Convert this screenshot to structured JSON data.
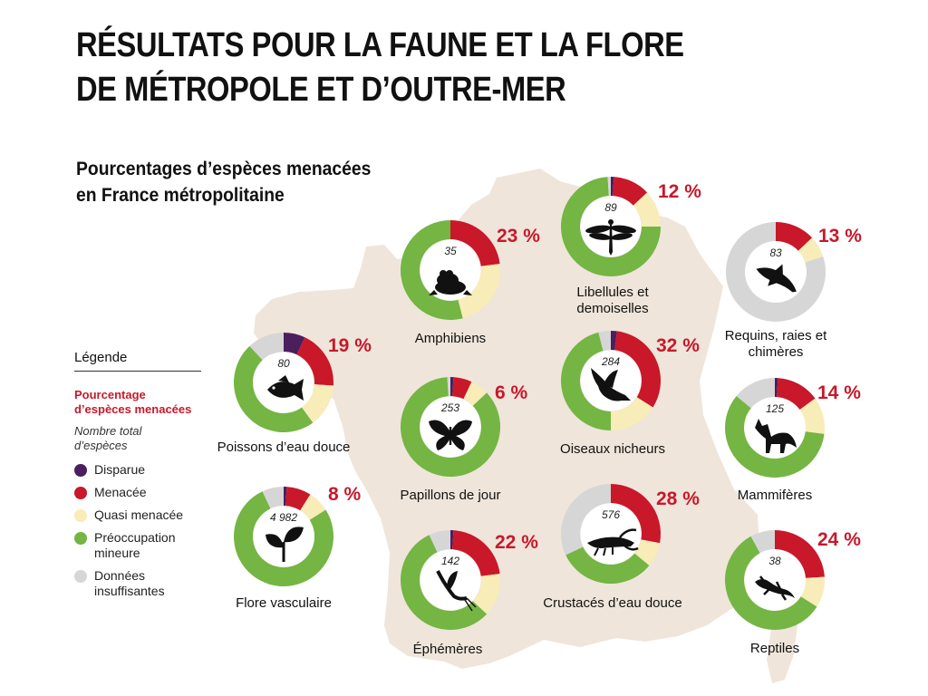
{
  "title_line1": "RÉSULTATS POUR LA FAUNE ET LA FLORE",
  "title_line2": "DE MÉTROPOLE ET D’OUTRE-MER",
  "subtitle_line1": "Pourcentages d’espèces menacées",
  "subtitle_line2": "en France métropolitaine",
  "legend": {
    "title": "Légende",
    "pct_line1": "Pourcentage",
    "pct_line2": "d’espèces menacées",
    "total_line1": "Nombre total",
    "total_line2": "d’espèces",
    "items": [
      {
        "lines": [
          "Disparue"
        ],
        "color": "#4b1e5e"
      },
      {
        "lines": [
          "Menacée"
        ],
        "color": "#c8182a"
      },
      {
        "lines": [
          "Quasi menacée"
        ],
        "color": "#f8ecb8"
      },
      {
        "lines": [
          "Préoccupation",
          "mineure"
        ],
        "color": "#74b543"
      },
      {
        "lines": [
          "Données",
          "insuffisantes"
        ],
        "color": "#d6d6d6"
      }
    ]
  },
  "colors": {
    "disparue": "#4b1e5e",
    "menacee": "#c8182a",
    "quasi": "#f8ecb8",
    "mineure": "#74b543",
    "insuffisantes": "#d6d6d6",
    "map": "#efe5da",
    "accent": "#c8182a"
  },
  "chart_data": {
    "type": "pie",
    "segment_order": [
      "Disparue",
      "Menacée",
      "Quasi menacée",
      "Préoccupation mineure",
      "Données insuffisantes"
    ],
    "groups": [
      {
        "label_lines": [
          "Amphibiens"
        ],
        "species_total": "35",
        "threatened_label": "23 %",
        "icon": "frog-icon",
        "segments": [
          0,
          23,
          23,
          54,
          0
        ]
      },
      {
        "label_lines": [
          "Libellules et",
          "demoiselles"
        ],
        "species_total": "89",
        "threatened_label": "12 %",
        "icon": "dragonfly-icon",
        "segments": [
          1,
          12,
          12,
          74,
          1
        ]
      },
      {
        "label_lines": [
          "Requins, raies et",
          "chimères"
        ],
        "species_total": "83",
        "threatened_label": "13 %",
        "icon": "shark-icon",
        "segments": [
          0,
          13,
          7,
          0,
          80
        ]
      },
      {
        "label_lines": [
          "Poissons d’eau douce"
        ],
        "species_total": "80",
        "threatened_label": "19 %",
        "icon": "fish-icon",
        "segments": [
          7,
          19,
          14,
          48,
          12
        ]
      },
      {
        "label_lines": [
          "Oiseaux nicheurs"
        ],
        "species_total": "284",
        "threatened_label": "32 %",
        "icon": "bird-icon",
        "segments": [
          2,
          32,
          16,
          46,
          4
        ]
      },
      {
        "label_lines": [
          "Mammifères"
        ],
        "species_total": "125",
        "threatened_label": "14 %",
        "icon": "fox-icon",
        "segments": [
          1,
          14,
          12,
          59,
          14
        ]
      },
      {
        "label_lines": [
          "Papillons de jour"
        ],
        "species_total": "253",
        "threatened_label": "6 %",
        "icon": "butterfly-icon",
        "segments": [
          1,
          6,
          6,
          86,
          1
        ]
      },
      {
        "label_lines": [
          "Flore vasculaire"
        ],
        "species_total": "4 982",
        "threatened_label": "8 %",
        "icon": "plant-icon",
        "segments": [
          1,
          8,
          7,
          77,
          7
        ]
      },
      {
        "label_lines": [
          "Crustacés d’eau douce"
        ],
        "species_total": "576",
        "threatened_label": "28 %",
        "icon": "crayfish-icon",
        "segments": [
          0,
          28,
          8,
          32,
          32
        ]
      },
      {
        "label_lines": [
          "Éphémères"
        ],
        "species_total": "142",
        "threatened_label": "22 %",
        "icon": "mayfly-icon",
        "segments": [
          1,
          22,
          14,
          56,
          7
        ]
      },
      {
        "label_lines": [
          "Reptiles"
        ],
        "species_total": "38",
        "threatened_label": "24 %",
        "icon": "lizard-icon",
        "segments": [
          0,
          24,
          10,
          58,
          8
        ]
      }
    ]
  }
}
